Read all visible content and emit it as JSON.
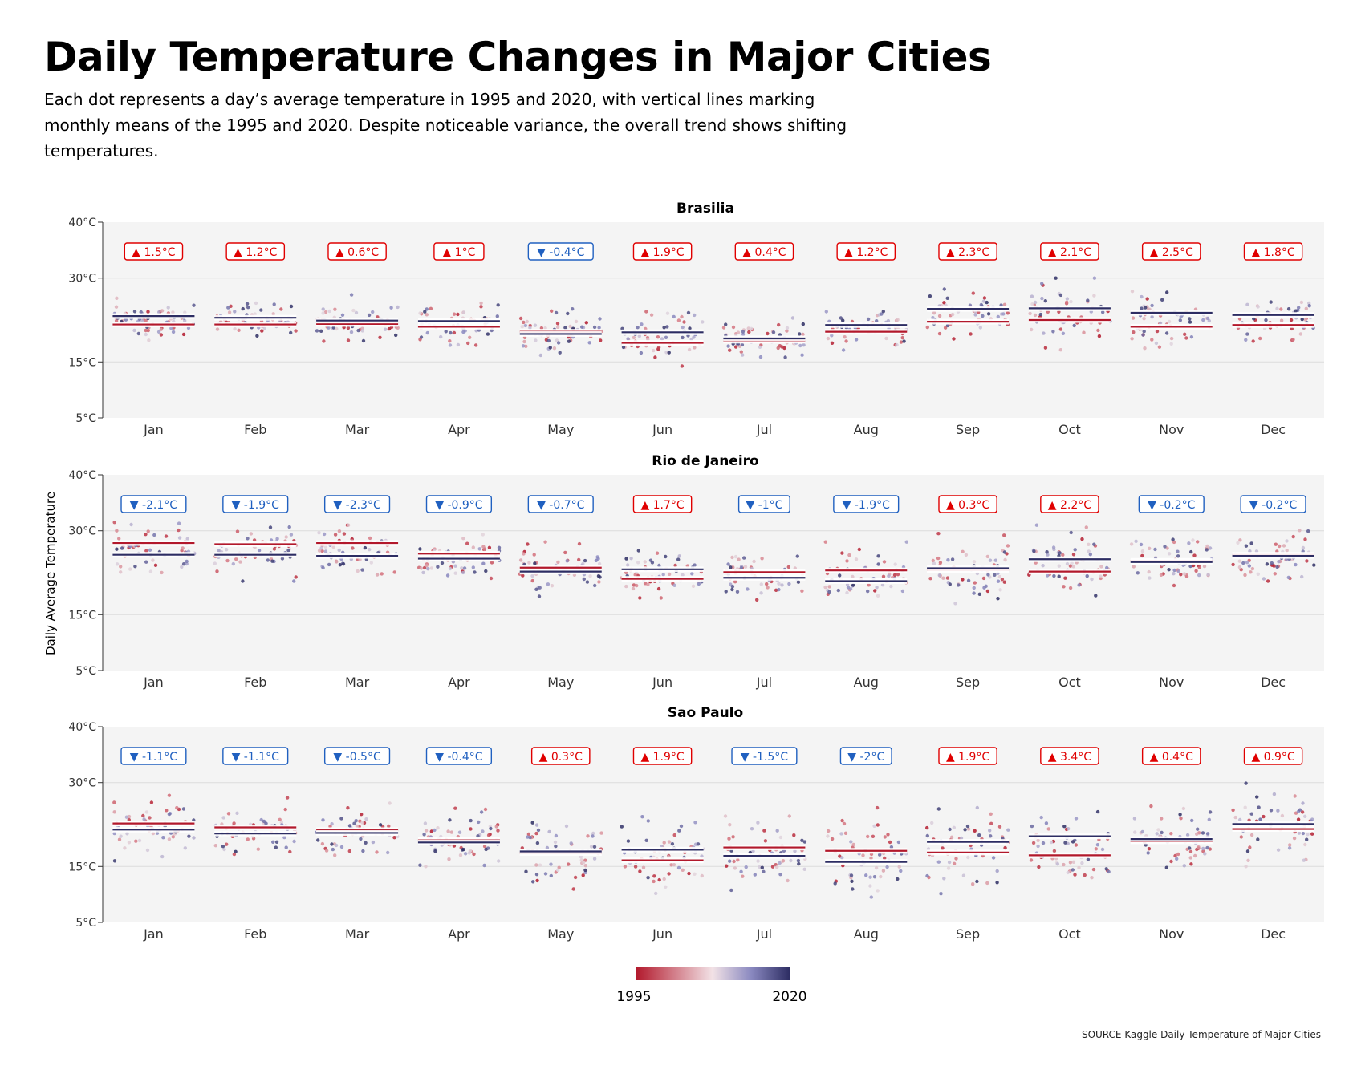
{
  "title": "Daily Temperature Changes in Major Cities",
  "subtitle": "Each dot represents a day’s average temperature in 1995 and 2020, with vertical lines marking monthly means of the 1995 and 2020. Despite noticeable variance, the overall trend shows shifting temperatures.",
  "source": "SOURCE Kaggle Daily Temperature of Major Cities",
  "colors": {
    "panel_bg": "#f4f4f4",
    "grid": "#dcdcdc",
    "color_1995": "#b2182b",
    "color_2020": "#2d2d63",
    "increase": "#e00000",
    "decrease": "#2060c0"
  },
  "chart_data": {
    "type": "scatter",
    "ylabel": "Daily Average Temperature",
    "months": [
      "Jan",
      "Feb",
      "Mar",
      "Apr",
      "May",
      "Jun",
      "Jul",
      "Aug",
      "Sep",
      "Oct",
      "Nov",
      "Dec"
    ],
    "y_ticks": [
      5,
      15,
      30,
      40
    ],
    "y_tick_labels": [
      "5°C",
      "15°C",
      "30°C",
      "40°C"
    ],
    "ylim": [
      5,
      40
    ],
    "grid": true,
    "legend": {
      "type": "colorbar",
      "placement": "bottom-center",
      "low_label": "1995",
      "high_label": "2020"
    },
    "panels": [
      {
        "city": "Brasilia",
        "labels": [
          "▲ 1.5°C",
          "▲ 1.2°C",
          "▲ 0.6°C",
          "▲ 1°C",
          "▼ -0.4°C",
          "▲ 1.9°C",
          "▲ 0.4°C",
          "▲ 1.2°C",
          "▲ 2.3°C",
          "▲ 2.1°C",
          "▲ 2.5°C",
          "▲ 1.8°C"
        ],
        "mean_1995": [
          21.7,
          21.7,
          21.8,
          21.3,
          20.4,
          18.4,
          18.8,
          20.4,
          22.2,
          22.5,
          21.3,
          21.6
        ],
        "mean_2020": [
          23.2,
          22.9,
          22.4,
          22.3,
          20.0,
          20.3,
          19.2,
          21.6,
          24.5,
          24.6,
          23.8,
          23.4
        ],
        "low": [
          18,
          18,
          18,
          18,
          16,
          13.5,
          15,
          17,
          18,
          16,
          16,
          18
        ],
        "high": [
          27,
          27,
          27,
          27,
          25,
          24,
          23,
          27,
          29,
          30,
          28,
          27
        ]
      },
      {
        "city": "Rio de Janeiro",
        "labels": [
          "▼ -2.1°C",
          "▼ -1.9°C",
          "▼ -2.3°C",
          "▼ -0.9°C",
          "▼ -0.7°C",
          "▲ 1.7°C",
          "▼ -1°C",
          "▼ -1.9°C",
          "▲ 0.3°C",
          "▲ 2.2°C",
          "▼ -0.2°C",
          "▼ -0.2°C"
        ],
        "mean_1995": [
          27.8,
          27.6,
          27.8,
          25.9,
          23.4,
          21.4,
          22.6,
          22.9,
          23.0,
          22.7,
          24.6,
          25.7
        ],
        "mean_2020": [
          25.7,
          25.7,
          25.5,
          25.0,
          22.7,
          23.1,
          21.6,
          21.0,
          23.3,
          24.9,
          24.4,
          25.5
        ],
        "low": [
          20,
          21,
          20,
          20,
          18,
          18,
          16,
          16,
          17,
          17,
          18,
          21
        ],
        "high": [
          33,
          32,
          31,
          30,
          28,
          27,
          27,
          28,
          30,
          31,
          31,
          33
        ]
      },
      {
        "city": "Sao Paulo",
        "labels": [
          "▼ -1.1°C",
          "▼ -1.1°C",
          "▼ -0.5°C",
          "▼ -0.4°C",
          "▲ 0.3°C",
          "▲ 1.9°C",
          "▼ -1.5°C",
          "▼ -2°C",
          "▲ 1.9°C",
          "▲ 3.4°C",
          "▲ 0.4°C",
          "▲ 0.9°C"
        ],
        "mean_1995": [
          22.7,
          22.0,
          21.5,
          19.7,
          17.4,
          16.1,
          18.4,
          17.8,
          17.5,
          17.0,
          19.5,
          21.7
        ],
        "mean_2020": [
          21.6,
          20.9,
          21.0,
          19.3,
          17.7,
          18.0,
          16.9,
          15.8,
          19.4,
          20.4,
          19.9,
          22.6
        ],
        "low": [
          16,
          17,
          17,
          15,
          10,
          10,
          8,
          8,
          9,
          13,
          14,
          15
        ],
        "high": [
          29,
          29,
          28,
          27,
          26,
          24,
          24,
          27,
          29,
          28,
          28,
          32
        ]
      }
    ]
  }
}
